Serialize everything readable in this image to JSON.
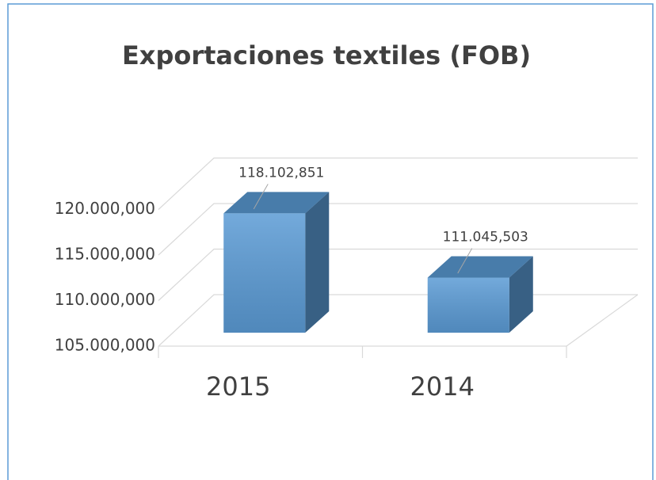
{
  "chart_data": {
    "type": "bar3d",
    "title": "Exportaciones textiles (FOB)",
    "categories": [
      "2015",
      "2014"
    ],
    "values": [
      118102851,
      111045503
    ],
    "value_labels": [
      "118.102,851",
      "111.045,503"
    ],
    "color": "#5b9bd5",
    "ylim": [
      105000000,
      120000000
    ],
    "yticks": [
      {
        "value": 105000000,
        "label": "105.000,000"
      },
      {
        "value": 110000000,
        "label": "110.000,000"
      },
      {
        "value": 115000000,
        "label": "115.000,000"
      },
      {
        "value": 120000000,
        "label": "120.000,000"
      }
    ],
    "grid": true
  }
}
